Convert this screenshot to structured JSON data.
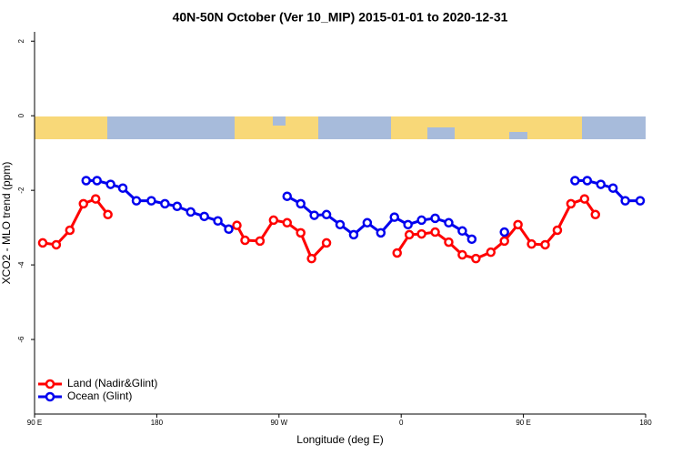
{
  "chart_data": {
    "type": "line",
    "title": "40N-50N October (Ver 10_MIP)   2015-01-01 to 2020-12-31",
    "x_label": "Longitude (deg E)",
    "y_label": "XCO2 - MLO trend (ppm)",
    "xlim": [
      90,
      540
    ],
    "ylim": [
      -8,
      2.25
    ],
    "xticks": [
      {
        "value": 90,
        "label": "90 E"
      },
      180,
      {
        "value": 270,
        "label": "90 W"
      },
      {
        "value": 360,
        "label": "0"
      },
      {
        "value": 450,
        "label": "90 E"
      },
      {
        "value": 540,
        "label": "180"
      }
    ],
    "yticks": [
      2,
      0,
      -2,
      -4,
      -6
    ],
    "legend": "bottom-left",
    "series": [
      {
        "name": "Land (Nadir&Glint)",
        "color": "#ff0000",
        "x": [
          96,
          106,
          116,
          126,
          135,
          144,
          null,
          239,
          245,
          256,
          266,
          276,
          286,
          294,
          305,
          null,
          357,
          366,
          375,
          385,
          395,
          405,
          415,
          426,
          436,
          446,
          456,
          466,
          475,
          485,
          495,
          503
        ],
        "values": [
          -3.41,
          -3.46,
          -3.07,
          -2.36,
          -2.23,
          -2.65,
          null,
          -2.94,
          -3.34,
          -3.36,
          -2.8,
          -2.87,
          -3.14,
          -3.83,
          -3.41,
          null,
          -3.68,
          -3.19,
          -3.17,
          -3.12,
          -3.39,
          -3.73,
          -3.83,
          -3.66,
          -3.36,
          -2.92,
          -3.44,
          -3.46,
          -3.07,
          -2.36,
          -2.23,
          -2.65
        ]
      },
      {
        "name": "Ocean (Glint)",
        "color": "#0000ee",
        "x": [
          128,
          136,
          146,
          155,
          165,
          176,
          186,
          195,
          205,
          215,
          225,
          233,
          null,
          276,
          286,
          296,
          305,
          315,
          325,
          335,
          345,
          355,
          365,
          375,
          385,
          395,
          405,
          412,
          null,
          436,
          null,
          488,
          497,
          507,
          516,
          525,
          536
        ],
        "values": [
          -1.74,
          -1.74,
          -1.84,
          -1.94,
          -2.28,
          -2.28,
          -2.36,
          -2.43,
          -2.58,
          -2.7,
          -2.82,
          -3.04,
          null,
          -2.16,
          -2.36,
          -2.67,
          -2.65,
          -2.92,
          -3.19,
          -2.87,
          -3.14,
          -2.72,
          -2.92,
          -2.8,
          -2.75,
          -2.87,
          -3.09,
          -3.31,
          null,
          -3.12,
          null,
          -1.74,
          -1.74,
          -1.84,
          -1.94,
          -2.28,
          -2.28
        ]
      }
    ]
  }
}
